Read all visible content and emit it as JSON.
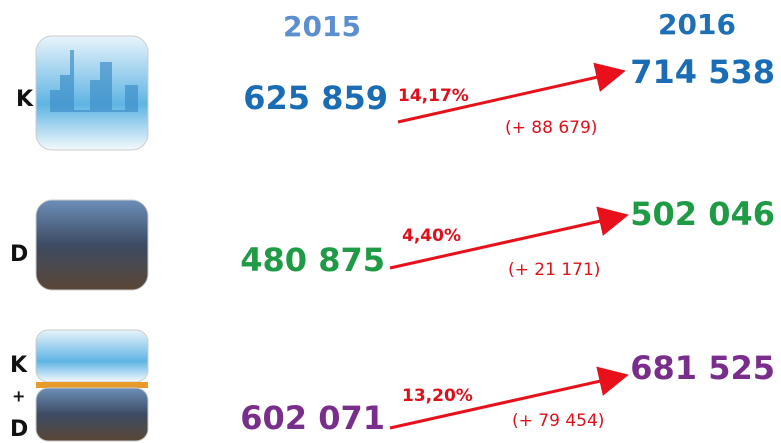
{
  "headers": {
    "year_start": "2015",
    "year_end": "2016"
  },
  "rows": [
    {
      "label_lines": [
        "K"
      ],
      "value_start": "625 859",
      "value_end": "714 538",
      "change_pct": "14,17%",
      "change_abs": "(+ 88 679)"
    },
    {
      "label_lines": [
        "D"
      ],
      "value_start": "480 875",
      "value_end": "502 046",
      "change_pct": "4,40%",
      "change_abs": "(+ 21 171)"
    },
    {
      "label_lines": [
        "K",
        "+",
        "D"
      ],
      "value_start": "602 071",
      "value_end": "681 525",
      "change_pct": "13,20%",
      "change_abs": "(+ 79 454)"
    }
  ]
}
